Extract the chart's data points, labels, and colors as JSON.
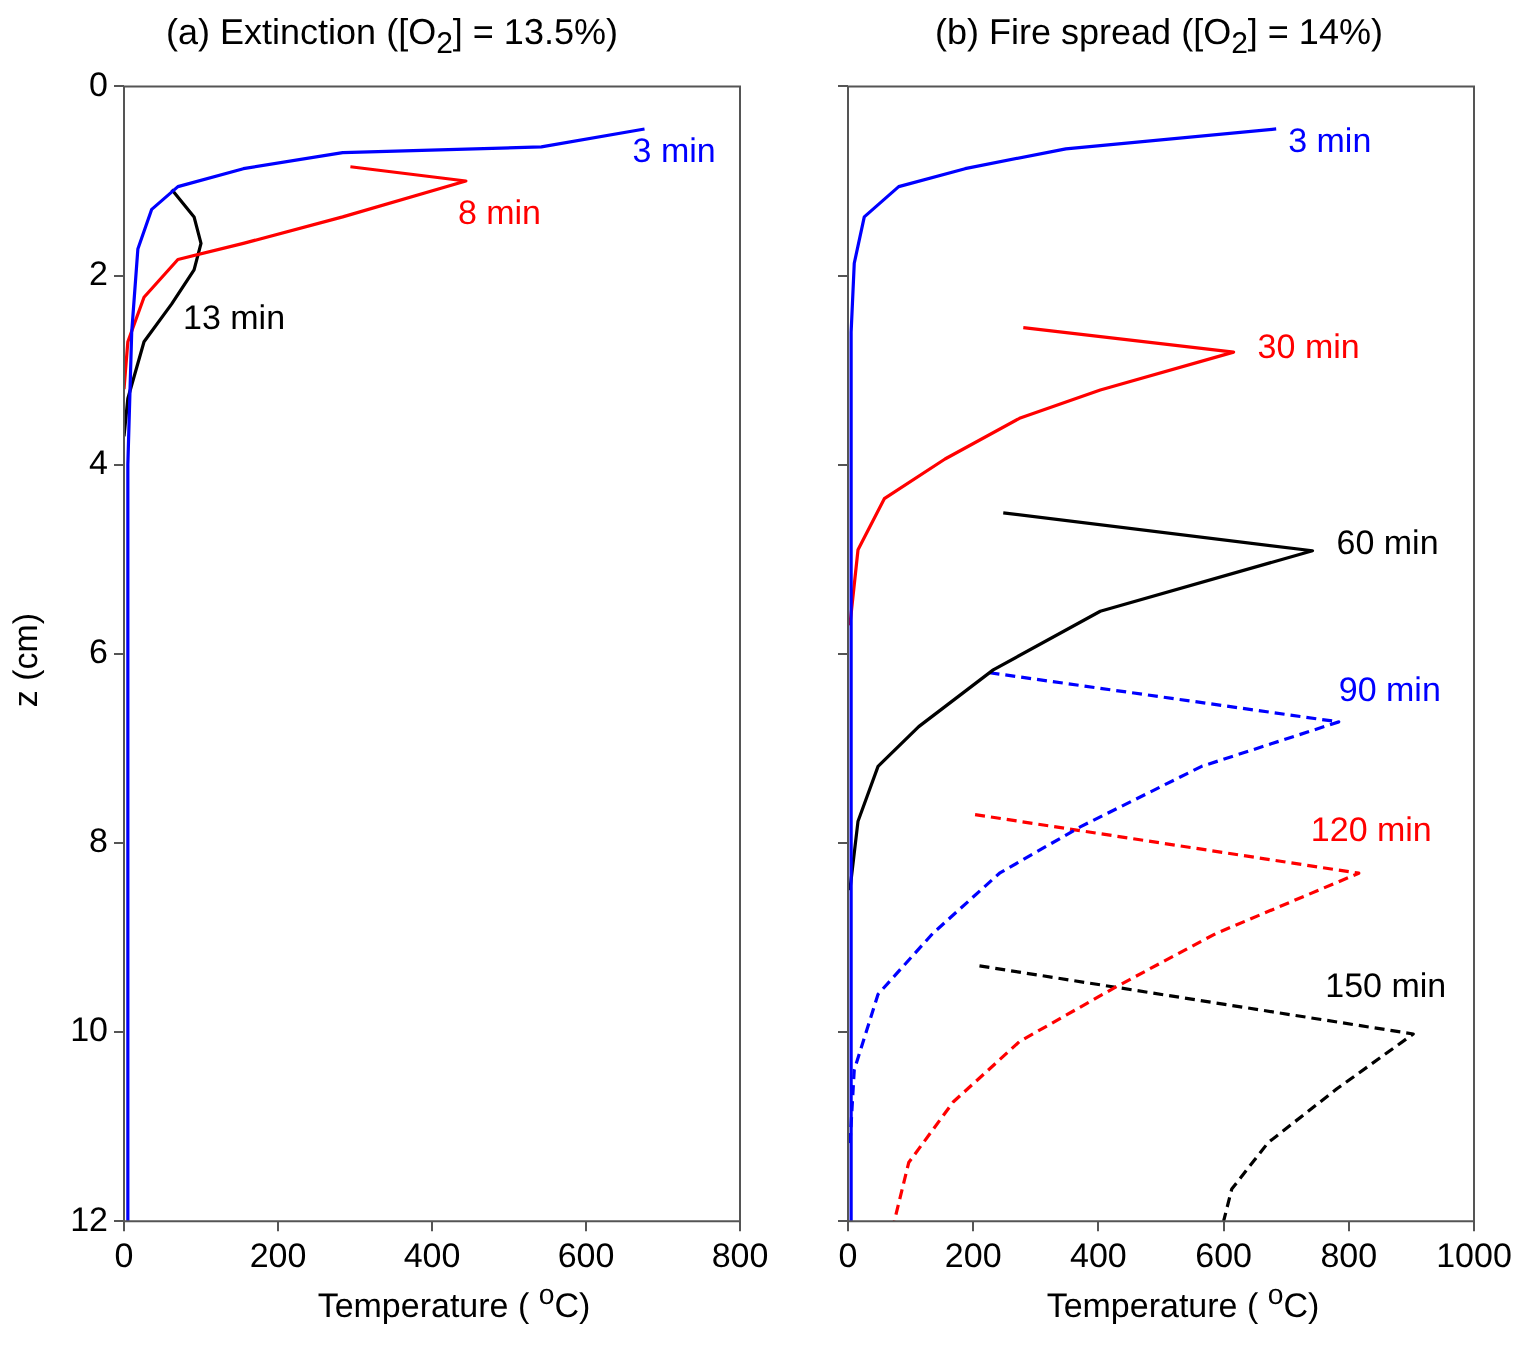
{
  "chart_data": [
    {
      "type": "line",
      "title": "(a) Extinction ([O$_{2}$] = 13.5%)",
      "xlabel": "Temperature ( $^{o}$C)",
      "ylabel": "z (cm)",
      "xlim": [
        0,
        800
      ],
      "xticks": [
        0,
        200,
        400,
        600,
        800
      ],
      "ylim": [
        12,
        0
      ],
      "yticks": [
        0,
        2,
        4,
        6,
        8,
        10,
        12
      ],
      "grid": false,
      "legend": false,
      "marker": "none",
      "series": [
        {
          "name": "3 min",
          "color": "#0000ff",
          "line_style": "solid",
          "x": [
            676,
            542,
            284,
            155,
            70,
            36,
            18,
            10,
            5,
            5
          ],
          "values": [
            0.45,
            0.64,
            0.7,
            0.87,
            1.06,
            1.3,
            1.72,
            2.6,
            4,
            12
          ]
        },
        {
          "name": "8 min",
          "color": "#ff0000",
          "line_style": "solid",
          "x": [
            294,
            444,
            284,
            155,
            70,
            26,
            5,
            0
          ],
          "values": [
            0.85,
            1.0,
            1.38,
            1.66,
            1.83,
            2.23,
            2.7,
            3.2
          ]
        },
        {
          "name": "13 min",
          "color": "#000000",
          "line_style": "solid",
          "x": [
            62,
            91,
            100,
            91,
            62,
            26,
            5,
            0
          ],
          "values": [
            1.09,
            1.38,
            1.66,
            1.94,
            2.3,
            2.7,
            3.3,
            3.7
          ]
        }
      ]
    },
    {
      "type": "line",
      "title": "(b) Fire spread ([O$_{2}$] = 14%)",
      "xlabel": "Temperature ( $^{o}$C)",
      "xlim": [
        0,
        1000
      ],
      "xticks": [
        0,
        200,
        400,
        600,
        800,
        1000
      ],
      "ylim": [
        12,
        0
      ],
      "yticks": [
        0,
        2,
        4,
        6,
        8,
        10,
        12
      ],
      "tick_labels": "x",
      "grid": false,
      "legend": false,
      "marker": "none",
      "series": [
        {
          "name": "3 min",
          "color": "#0000ff",
          "line_style": "solid",
          "x": [
            684,
            348,
            187,
            81,
            26,
            10,
            5,
            5
          ],
          "values": [
            0.45,
            0.66,
            0.87,
            1.06,
            1.38,
            1.87,
            2.6,
            12
          ]
        },
        {
          "name": "30 min",
          "color": "#ff0000",
          "line_style": "solid",
          "x": [
            280,
            616,
            403,
            274,
            155,
            58,
            16,
            3
          ],
          "values": [
            2.55,
            2.81,
            3.21,
            3.51,
            3.94,
            4.36,
            4.9,
            5.7
          ]
        },
        {
          "name": "60 min",
          "color": "#000000",
          "line_style": "solid",
          "x": [
            248,
            742,
            403,
            232,
            113,
            48,
            16,
            3
          ],
          "values": [
            4.51,
            4.91,
            5.55,
            6.17,
            6.77,
            7.19,
            7.77,
            8.5
          ]
        },
        {
          "name": "90 min",
          "color": "#0000ff",
          "line_style": "dashed",
          "x": [
            226,
            784,
            565,
            371,
            242,
            135,
            48,
            10,
            3
          ],
          "values": [
            6.2,
            6.72,
            7.19,
            7.83,
            8.32,
            8.96,
            9.6,
            10.4,
            11.2
          ]
        },
        {
          "name": "120 min",
          "color": "#ff0000",
          "line_style": "dashed",
          "x": [
            203,
            816,
            587,
            426,
            274,
            168,
            97,
            74
          ],
          "values": [
            7.7,
            8.32,
            8.96,
            9.53,
            10.1,
            10.74,
            11.38,
            12
          ]
        },
        {
          "name": "150 min",
          "color": "#000000",
          "line_style": "dashed",
          "x": [
            210,
            903,
            781,
            671,
            613,
            600
          ],
          "values": [
            9.3,
            10.02,
            10.6,
            11.17,
            11.66,
            12
          ]
        }
      ]
    }
  ]
}
